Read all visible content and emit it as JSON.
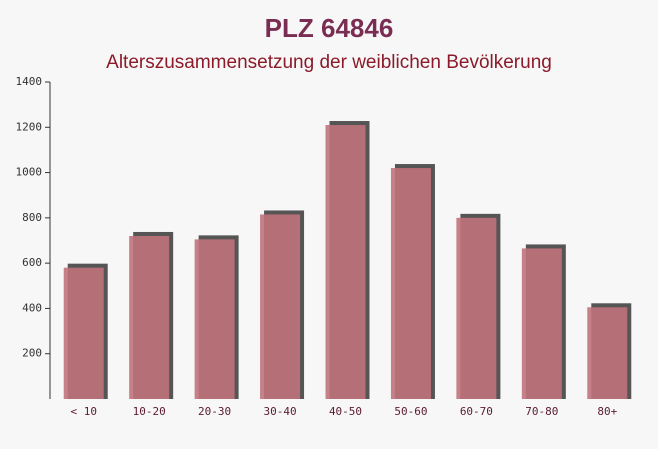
{
  "chart_data": {
    "type": "bar",
    "title": "PLZ 64846",
    "subtitle": "Alterszusammensetzung der weiblichen Bevölkerung",
    "categories": [
      "< 10",
      "10-20",
      "20-30",
      "30-40",
      "40-50",
      "50-60",
      "60-70",
      "70-80",
      "80+"
    ],
    "values": [
      580,
      720,
      705,
      815,
      1210,
      1020,
      800,
      665,
      405
    ],
    "color": "#c0727a",
    "ylim": [
      0,
      1400
    ],
    "yticks": [
      200,
      400,
      600,
      800,
      1000,
      1200,
      1400
    ],
    "grid": false
  }
}
